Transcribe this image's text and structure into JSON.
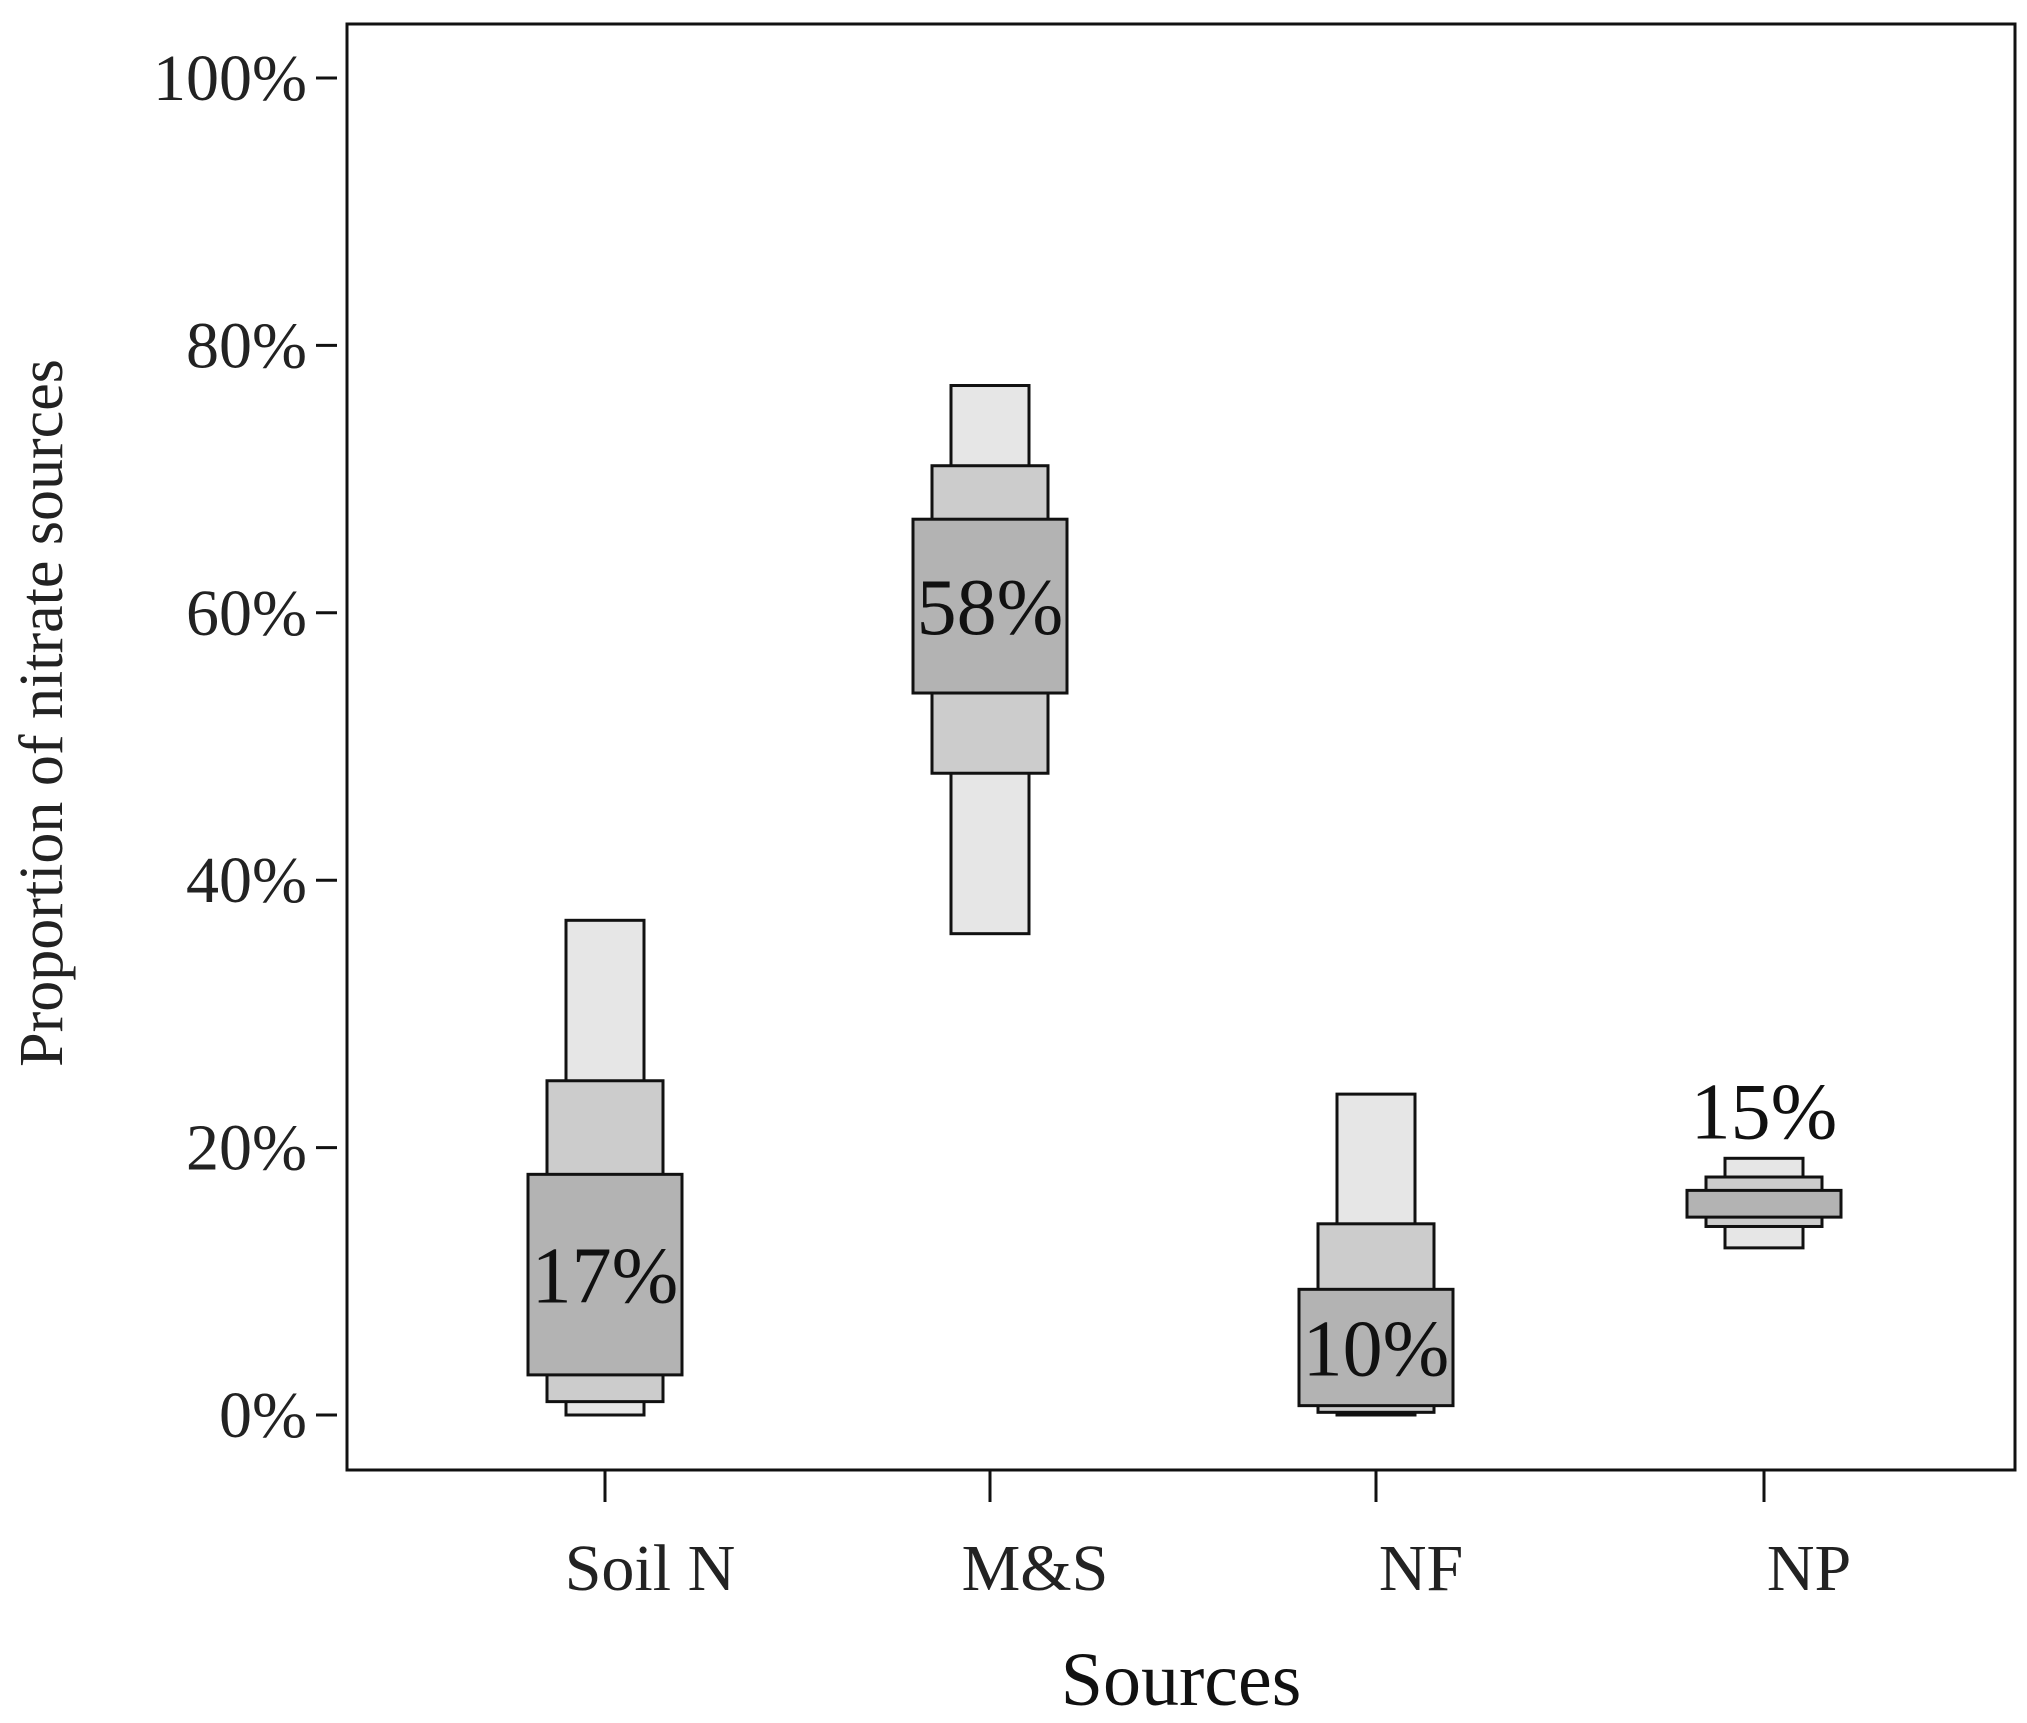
{
  "chart_data": {
    "type": "boxplot",
    "xlabel": "Sources",
    "ylabel": "Proportion of nitrate sources",
    "ylim": [
      0,
      100
    ],
    "yticks": [
      0,
      20,
      40,
      60,
      80,
      100
    ],
    "ytick_labels": [
      "0%",
      "20%",
      "40%",
      "60%",
      "80%",
      "100%"
    ],
    "categories": [
      "Soil N",
      "M&S",
      "NF",
      "NP"
    ],
    "interval_colors": {
      "outer": "#e6e6e6",
      "middle": "#cccccc",
      "inner": "#b3b3b3"
    },
    "series": [
      {
        "category": "Soil N",
        "label": "17%",
        "label_position": "inside",
        "outer": [
          0,
          37
        ],
        "middle": [
          1,
          25
        ],
        "inner": [
          3,
          18
        ]
      },
      {
        "category": "M&S",
        "label": "58%",
        "label_position": "inside",
        "outer": [
          36,
          77
        ],
        "middle": [
          48,
          71
        ],
        "inner": [
          54,
          67
        ]
      },
      {
        "category": "NF",
        "label": "10%",
        "label_position": "inside",
        "outer": [
          0,
          24
        ],
        "middle": [
          0.2,
          14.3
        ],
        "inner": [
          0.7,
          9.4
        ]
      },
      {
        "category": "NP",
        "label": "15%",
        "label_position": "above",
        "outer": [
          12.5,
          19.2
        ],
        "middle": [
          14.1,
          17.8
        ],
        "inner": [
          14.8,
          16.8
        ]
      }
    ]
  }
}
